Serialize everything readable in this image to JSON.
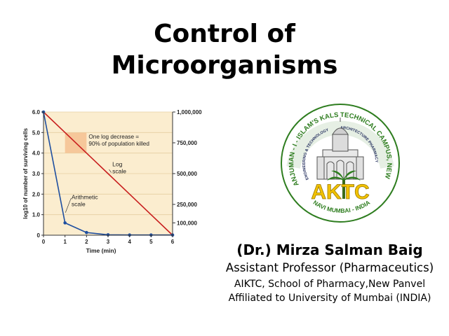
{
  "slide": {
    "title_line1": "Control of",
    "title_line2": "Microorganisms"
  },
  "author": {
    "name": "(Dr.) Mirza Salman Baig",
    "role": "Assistant Professor (Pharmaceutics)",
    "school": "AIKTC, School of Pharmacy,New Panvel",
    "affiliation": "Affiliated to University of Mumbai (INDIA)"
  },
  "logo": {
    "text_arc_left": "ANJUMAN - I - ISLAM'S KALSEKAR",
    "text_arc_right": "TECHNICAL CAMPUS, NEW PANVEL",
    "text_inner_left": "ENGINEERING & TECHNOLOGY",
    "text_inner_right": "ARCHITECTURE PHARMACY",
    "monogram": "AKTC",
    "bottom_text": "NAVI MUMBAI - INDIA",
    "colors": {
      "green": "#2e7d1f",
      "yellow": "#f2c200",
      "navy": "#1f2a5a"
    }
  },
  "chart_data": {
    "type": "line",
    "xlabel": "Time (min)",
    "ylabel": "log10 of number of surviving cells",
    "x": [
      0,
      1,
      2,
      3,
      4,
      5,
      6
    ],
    "xlim": [
      0,
      6
    ],
    "ylim": [
      0,
      6
    ],
    "y_ticks_left": [
      "0",
      "1.0",
      "2.0",
      "3.0",
      "4.0",
      "5.0",
      "6.0"
    ],
    "y_ticks_right": [
      {
        "value": 0.1,
        "label": "100,000"
      },
      {
        "value": 0.25,
        "label": "250,000"
      },
      {
        "value": 0.5,
        "label": "500,000"
      },
      {
        "value": 0.75,
        "label": "750,000"
      },
      {
        "value": 1.0,
        "label": "1,000,000"
      }
    ],
    "series": [
      {
        "name": "Log scale",
        "color": "#c81e1e",
        "values": [
          6,
          5,
          4,
          3,
          2,
          1,
          0
        ],
        "label_lines": [
          "Log",
          "scale"
        ]
      },
      {
        "name": "Arithmetic scale",
        "color": "#1f4fa0",
        "values": [
          6.0,
          0.6,
          0.13,
          0.02,
          0.01,
          0.01,
          0.01
        ],
        "label_lines": [
          "Arithmetic",
          "scale"
        ]
      }
    ],
    "annotation": {
      "lines": [
        "One log decrease =",
        "90% of population killed"
      ],
      "box_x": [
        1,
        2
      ],
      "box_y": [
        4,
        5
      ],
      "box_color": "#f6c79a"
    },
    "colors": {
      "background": "#fbedcf",
      "grid": "#e6cfa0",
      "axis": "#333333"
    }
  }
}
